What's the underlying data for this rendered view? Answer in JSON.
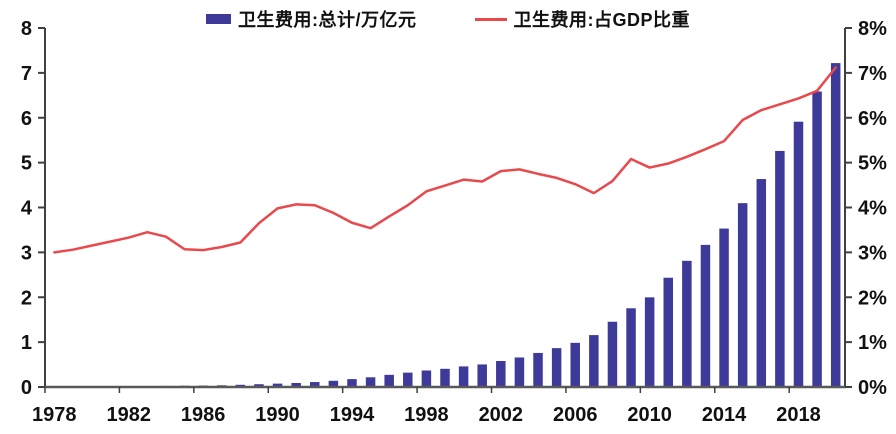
{
  "chart_data": {
    "type": "bar",
    "title": "",
    "categories": [
      1978,
      1979,
      1980,
      1981,
      1982,
      1983,
      1984,
      1985,
      1986,
      1987,
      1988,
      1989,
      1990,
      1991,
      1992,
      1993,
      1994,
      1995,
      1996,
      1997,
      1998,
      1999,
      2000,
      2001,
      2002,
      2003,
      2004,
      2005,
      2006,
      2007,
      2008,
      2009,
      2010,
      2011,
      2012,
      2013,
      2014,
      2015,
      2016,
      2017,
      2018,
      2019,
      2020
    ],
    "series": [
      {
        "name": "卫生费用:总计/万亿元",
        "type": "bar",
        "axis": "left",
        "color": "#3e3a9a",
        "values": [
          0.011,
          0.013,
          0.014,
          0.016,
          0.018,
          0.021,
          0.024,
          0.028,
          0.032,
          0.038,
          0.049,
          0.062,
          0.075,
          0.089,
          0.11,
          0.138,
          0.176,
          0.216,
          0.271,
          0.32,
          0.368,
          0.405,
          0.459,
          0.503,
          0.579,
          0.658,
          0.759,
          0.866,
          0.984,
          1.157,
          1.454,
          1.754,
          1.998,
          2.435,
          2.812,
          3.167,
          3.531,
          4.097,
          4.634,
          5.26,
          5.912,
          6.584,
          7.218
        ]
      },
      {
        "name": "卫生费用:占GDP比重",
        "type": "line",
        "axis": "right",
        "color": "#e8494d",
        "values": [
          3.0,
          3.06,
          3.15,
          3.24,
          3.33,
          3.45,
          3.35,
          3.07,
          3.05,
          3.12,
          3.22,
          3.65,
          3.98,
          4.07,
          4.05,
          3.88,
          3.66,
          3.54,
          3.8,
          4.05,
          4.36,
          4.49,
          4.62,
          4.58,
          4.81,
          4.85,
          4.75,
          4.66,
          4.52,
          4.32,
          4.59,
          5.08,
          4.89,
          4.98,
          5.13,
          5.3,
          5.48,
          5.95,
          6.17,
          6.3,
          6.43,
          6.6,
          7.12
        ]
      }
    ],
    "left_axis": {
      "min": 0,
      "max": 8,
      "tick_labels": [
        "0",
        "1",
        "2",
        "3",
        "4",
        "5",
        "6",
        "7",
        "8"
      ]
    },
    "right_axis": {
      "min": 0,
      "max": 8,
      "tick_labels": [
        "0%",
        "1%",
        "2%",
        "3%",
        "4%",
        "5%",
        "6%",
        "7%",
        "8%"
      ]
    },
    "x_tick_labels": [
      "1978",
      "1982",
      "1986",
      "1990",
      "1994",
      "1998",
      "2002",
      "2006",
      "2010",
      "2014",
      "2018"
    ],
    "legend_position": "top",
    "grid": "off"
  },
  "colors": {
    "bar": "#3e3a9a",
    "line": "#e8494d",
    "axis": "#404040",
    "baseline": "#595959",
    "text": "#111111"
  }
}
